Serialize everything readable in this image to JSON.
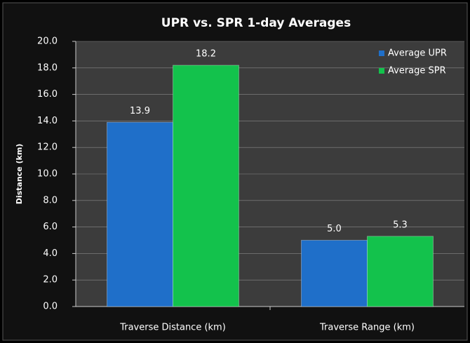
{
  "chart_data": {
    "type": "bar",
    "title": "UPR vs. SPR 1-day Averages",
    "ylabel": "Distance (km)",
    "categories": [
      "Traverse Distance (km)",
      "Traverse Range (km)"
    ],
    "series": [
      {
        "name": "Average UPR",
        "color": "#1f6fc9",
        "values": [
          13.9,
          5.0
        ],
        "value_labels": [
          "13.9",
          "5.0"
        ]
      },
      {
        "name": "Average SPR",
        "color": "#13c24c",
        "values": [
          18.2,
          5.3
        ],
        "value_labels": [
          "18.2",
          "5.3"
        ]
      }
    ],
    "ylim": [
      0,
      20
    ],
    "yticks": [
      {
        "value": 0,
        "label": "0.0"
      },
      {
        "value": 2,
        "label": "2.0"
      },
      {
        "value": 4,
        "label": "4.0"
      },
      {
        "value": 6,
        "label": "6.0"
      },
      {
        "value": 8,
        "label": "8.0"
      },
      {
        "value": 10,
        "label": "10.0"
      },
      {
        "value": 12,
        "label": "12.0"
      },
      {
        "value": 14,
        "label": "14.0"
      },
      {
        "value": 16,
        "label": "16.0"
      },
      {
        "value": 18,
        "label": "18.0"
      },
      {
        "value": 20,
        "label": "20.0"
      }
    ],
    "grid": true,
    "legend": "upper right"
  }
}
